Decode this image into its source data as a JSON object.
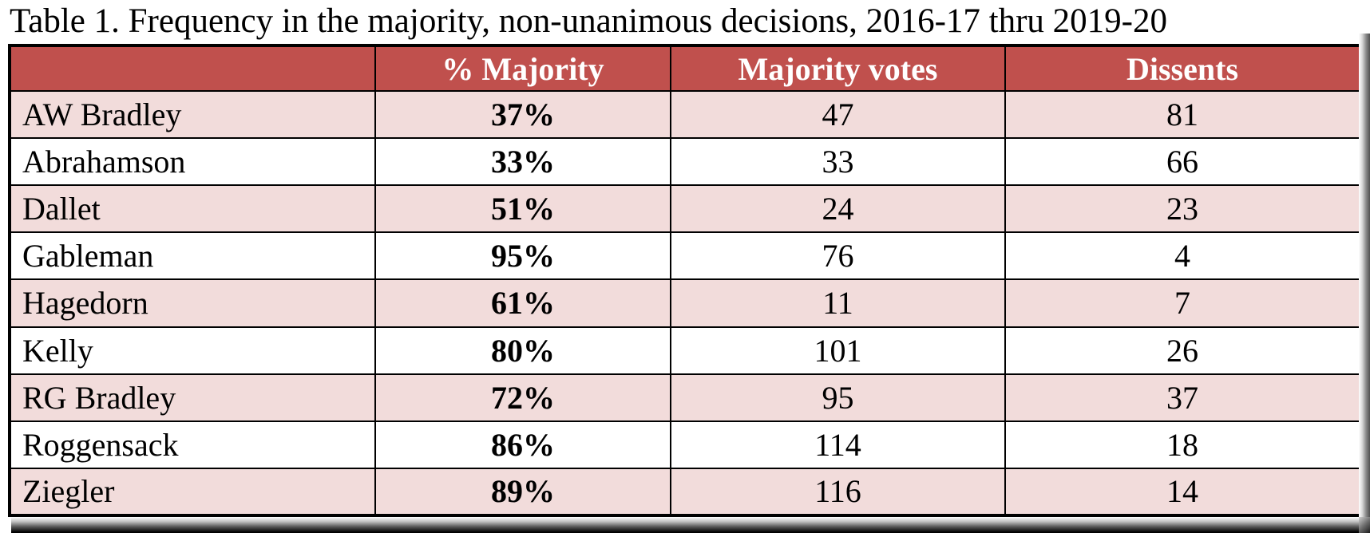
{
  "title": "Table 1. Frequency in the majority, non-unanimous decisions, 2016-17 thru 2019-20",
  "table": {
    "columns": [
      "",
      "% Majority",
      "Majority votes",
      "Dissents"
    ],
    "rows": [
      {
        "name": "AW Bradley",
        "pct_majority": "37%",
        "majority_votes": "47",
        "dissents": "81"
      },
      {
        "name": "Abrahamson",
        "pct_majority": "33%",
        "majority_votes": "33",
        "dissents": "66"
      },
      {
        "name": "Dallet",
        "pct_majority": "51%",
        "majority_votes": "24",
        "dissents": "23"
      },
      {
        "name": "Gableman",
        "pct_majority": "95%",
        "majority_votes": "76",
        "dissents": "4"
      },
      {
        "name": "Hagedorn",
        "pct_majority": "61%",
        "majority_votes": "11",
        "dissents": "7"
      },
      {
        "name": "Kelly",
        "pct_majority": "80%",
        "majority_votes": "101",
        "dissents": "26"
      },
      {
        "name": "RG Bradley",
        "pct_majority": "72%",
        "majority_votes": "95",
        "dissents": "37"
      },
      {
        "name": "Roggensack",
        "pct_majority": "86%",
        "majority_votes": "114",
        "dissents": "18"
      },
      {
        "name": "Ziegler",
        "pct_majority": "89%",
        "majority_votes": "116",
        "dissents": "14"
      }
    ]
  },
  "colors": {
    "header_bg": "#c0504d",
    "alt_row_bg": "#f2dcdb",
    "border": "#000000",
    "header_text": "#ffffff",
    "body_text": "#000000"
  },
  "chart_data": {
    "type": "table",
    "title": "Table 1. Frequency in the majority, non-unanimous decisions, 2016-17 thru 2019-20",
    "columns": [
      "",
      "% Majority",
      "Majority votes",
      "Dissents"
    ],
    "rows": [
      [
        "AW Bradley",
        "37%",
        47,
        81
      ],
      [
        "Abrahamson",
        "33%",
        33,
        66
      ],
      [
        "Dallet",
        "51%",
        24,
        23
      ],
      [
        "Gableman",
        "95%",
        76,
        4
      ],
      [
        "Hagedorn",
        "61%",
        11,
        7
      ],
      [
        "Kelly",
        "80%",
        101,
        26
      ],
      [
        "RG Bradley",
        "72%",
        95,
        37
      ],
      [
        "Roggensack",
        "86%",
        114,
        18
      ],
      [
        "Ziegler",
        "89%",
        116,
        14
      ]
    ],
    "layout": {
      "header_fill": "#c0504d",
      "banded_rows": true,
      "band_fill": "#f2dcdb",
      "grid": true,
      "shadow": "offset-bottom-right"
    }
  }
}
